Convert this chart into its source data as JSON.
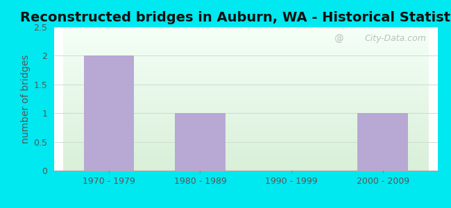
{
  "title": "Reconstructed bridges in Auburn, WA - Historical Statistics",
  "categories": [
    "1970 - 1979",
    "1980 - 1989",
    "1990 - 1999",
    "2000 - 2009"
  ],
  "values": [
    2,
    1,
    0,
    1
  ],
  "bar_color": "#b8a8d4",
  "ylabel": "number of bridges",
  "ylim": [
    0,
    2.5
  ],
  "yticks": [
    0,
    0.5,
    1,
    1.5,
    2,
    2.5
  ],
  "title_fontsize": 14,
  "ylabel_fontsize": 10,
  "tick_fontsize": 9,
  "title_color": "#111111",
  "ylabel_color": "#555555",
  "tick_color": "#555555",
  "background_outer": "#00e8f0",
  "grid_color": "#ccddcc",
  "watermark": "City-Data.com",
  "bar_width": 0.55,
  "bg_top_color": "#f5fff8",
  "bg_bottom_color": "#d8f0d8"
}
